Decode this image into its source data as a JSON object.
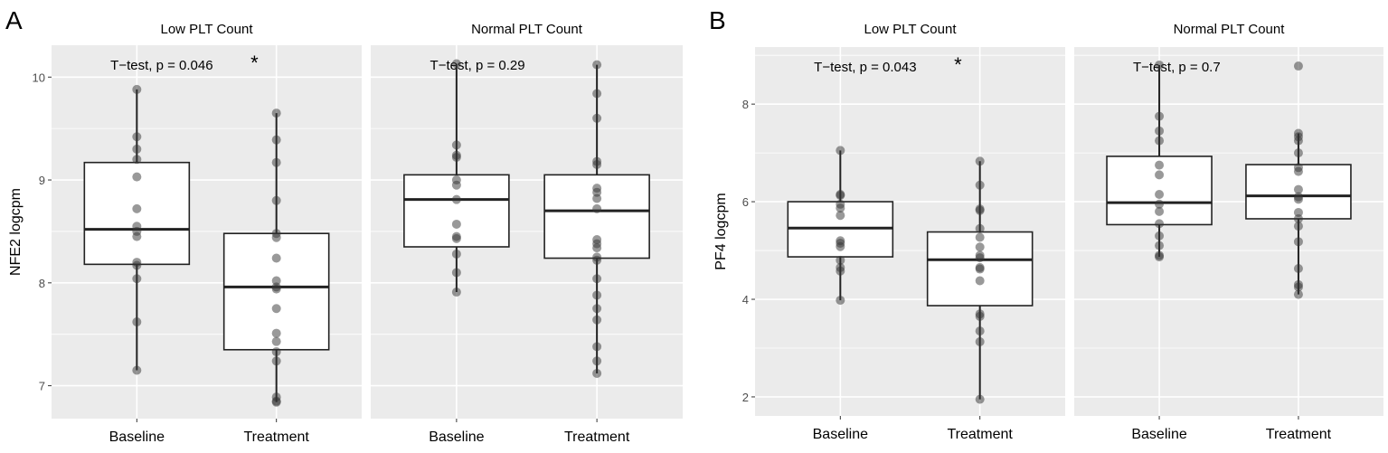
{
  "chart_data": [
    {
      "type": "box",
      "panel_label": "A",
      "ylabel": "NFE2 logcpm",
      "ylim": [
        6.68,
        10.31
      ],
      "yticks": [
        7,
        8,
        9,
        10
      ],
      "minor_ticks": [
        7.5,
        8.5,
        9.5
      ],
      "categories": [
        "Baseline",
        "Treatment"
      ],
      "facets": [
        {
          "title": "Low PLT Count",
          "annotation": "T−test, p = 0.046",
          "significance": "*",
          "groups": [
            {
              "name": "Baseline",
              "min": 7.15,
              "q1": 8.18,
              "median": 8.52,
              "q3": 9.17,
              "max": 9.88,
              "points": [
                9.88,
                9.42,
                9.3,
                9.2,
                9.03,
                8.72,
                8.55,
                8.5,
                8.45,
                8.2,
                8.17,
                8.04,
                7.62,
                7.15
              ]
            },
            {
              "name": "Treatment",
              "min": 6.84,
              "q1": 7.35,
              "median": 7.96,
              "q3": 8.48,
              "max": 9.65,
              "points": [
                9.65,
                9.39,
                9.17,
                8.8,
                8.48,
                8.44,
                8.24,
                8.02,
                7.96,
                7.94,
                7.75,
                7.51,
                7.43,
                7.33,
                7.24,
                6.89,
                6.85,
                6.84
              ]
            }
          ]
        },
        {
          "title": "Normal PLT Count",
          "annotation": "T−test, p = 0.29",
          "significance": "",
          "groups": [
            {
              "name": "Baseline",
              "min": 7.91,
              "q1": 8.35,
              "median": 8.81,
              "q3": 9.05,
              "max": 10.13,
              "points": [
                10.13,
                9.34,
                9.24,
                9.22,
                9.0,
                8.95,
                8.81,
                8.57,
                8.45,
                8.43,
                8.28,
                8.1,
                7.91
              ]
            },
            {
              "name": "Treatment",
              "min": 7.12,
              "q1": 8.24,
              "median": 8.7,
              "q3": 9.05,
              "max": 10.12,
              "points": [
                10.12,
                9.84,
                9.6,
                9.18,
                9.15,
                8.92,
                8.88,
                8.82,
                8.72,
                8.42,
                8.38,
                8.34,
                8.25,
                8.22,
                8.04,
                7.88,
                7.75,
                7.64,
                7.38,
                7.24,
                7.12
              ]
            }
          ]
        }
      ]
    },
    {
      "type": "box",
      "panel_label": "B",
      "ylabel": "PF4 logcpm",
      "ylim": [
        1.61,
        9.17
      ],
      "yticks": [
        2,
        4,
        6,
        8
      ],
      "minor_ticks": [
        3,
        5,
        7,
        9
      ],
      "categories": [
        "Baseline",
        "Treatment"
      ],
      "facets": [
        {
          "title": "Low PLT Count",
          "annotation": "T−test, p = 0.043",
          "significance": "*",
          "groups": [
            {
              "name": "Baseline",
              "min": 3.98,
              "q1": 4.87,
              "median": 5.46,
              "q3": 6.0,
              "max": 7.05,
              "points": [
                7.05,
                6.15,
                6.13,
                5.95,
                5.87,
                5.72,
                5.2,
                5.15,
                5.08,
                4.8,
                4.65,
                4.58,
                3.98
              ]
            },
            {
              "name": "Treatment",
              "min": 1.95,
              "q1": 3.87,
              "median": 4.81,
              "q3": 5.38,
              "max": 6.83,
              "points": [
                6.83,
                6.34,
                5.85,
                5.82,
                5.45,
                5.27,
                5.07,
                4.9,
                4.85,
                4.65,
                4.62,
                4.38,
                3.7,
                3.65,
                3.35,
                3.13,
                1.95
              ]
            }
          ]
        },
        {
          "title": "Normal PLT Count",
          "annotation": "T−test, p = 0.7",
          "significance": "",
          "groups": [
            {
              "name": "Baseline",
              "min": 4.87,
              "q1": 5.53,
              "median": 5.98,
              "q3": 6.93,
              "max": 8.8,
              "points": [
                8.8,
                7.75,
                7.45,
                7.25,
                6.75,
                6.55,
                6.15,
                5.95,
                5.8,
                5.55,
                5.3,
                5.1,
                4.9,
                4.87
              ]
            },
            {
              "name": "Treatment",
              "min": 4.1,
              "q1": 5.65,
              "median": 6.12,
              "q3": 6.76,
              "max": 7.4,
              "points": [
                8.78,
                7.4,
                7.33,
                7.25,
                7.0,
                6.7,
                6.62,
                6.25,
                6.1,
                6.05,
                5.78,
                5.65,
                5.5,
                5.18,
                4.63,
                4.3,
                4.25,
                4.1
              ]
            }
          ]
        }
      ]
    }
  ]
}
